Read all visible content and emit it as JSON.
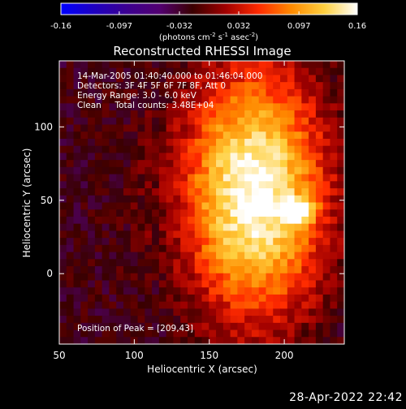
{
  "colorbar": {
    "ticks": [
      {
        "label": "-0.16",
        "value": -0.16
      },
      {
        "label": "-0.097",
        "value": -0.097
      },
      {
        "label": "-0.032",
        "value": -0.032
      },
      {
        "label": "0.032",
        "value": 0.032
      },
      {
        "label": "0.097",
        "value": 0.097
      },
      {
        "label": "0.16",
        "value": 0.16
      }
    ],
    "range": [
      -0.16,
      0.16
    ],
    "unit_label_parts": [
      {
        "t": "(photons cm",
        "s": false
      },
      {
        "t": "-2",
        "s": true
      },
      {
        "t": " s",
        "s": false
      },
      {
        "t": "-1",
        "s": true
      },
      {
        "t": " asec",
        "s": false
      },
      {
        "t": "-2",
        "s": true
      },
      {
        "t": ")",
        "s": false
      }
    ]
  },
  "chart_data": {
    "type": "heatmap",
    "title": "Reconstructed RHESSI Image",
    "xlabel": "Heliocentric X (arcsec)",
    "ylabel": "Heliocentric Y (arcsec)",
    "xlim": [
      50,
      240
    ],
    "ylim": [
      -48,
      145
    ],
    "x_ticks": [
      50,
      100,
      150,
      200
    ],
    "y_ticks": [
      0,
      50,
      100
    ],
    "info_lines": [
      "14-Mar-2005 01:40:40.000 to 01:46:04.000",
      "Detectors: 3F 4F 5F 6F 7F 8F, Att 0",
      "Energy Range: 3.0 - 6.0 keV",
      "Clean     Total counts: 3.48E+04"
    ],
    "peak_label": "Position of Peak = [209,43]",
    "peak": [
      209,
      43
    ],
    "colormap": [
      "#0000ff",
      "#1e00c0",
      "#3c0090",
      "#520070",
      "#3a0000",
      "#a00000",
      "#ff2a00",
      "#ff8a00",
      "#ffd040",
      "#ffffff"
    ]
  },
  "timestamp": "28-Apr-2022 22:42"
}
